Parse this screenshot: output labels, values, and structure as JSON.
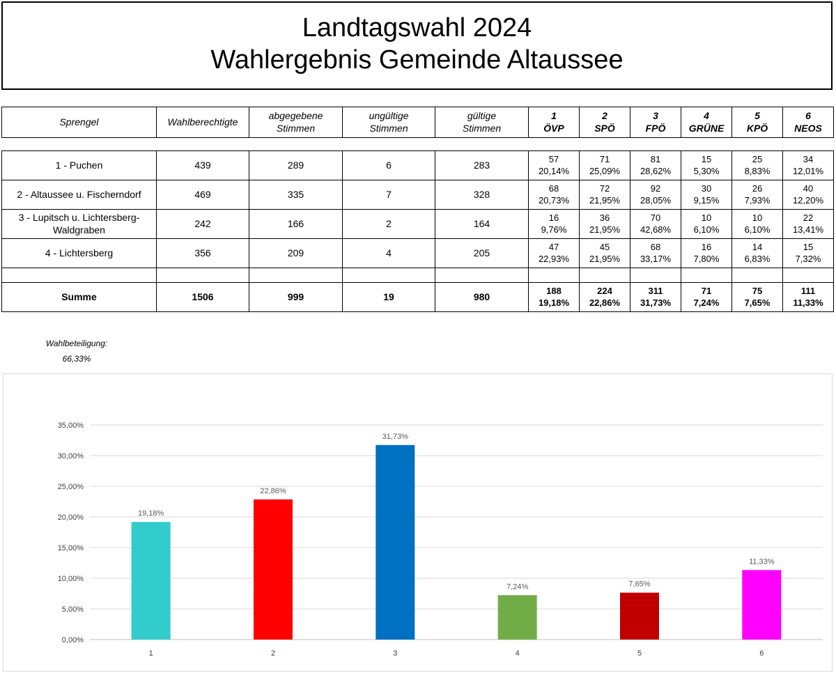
{
  "title": {
    "line1": "Landtagswahl 2024",
    "line2": "Wahlergebnis Gemeinde Altaussee"
  },
  "table": {
    "headers": {
      "sprengel": "Sprengel",
      "wahlberechtigte": "Wahlberechtigte",
      "abgegebene_1": "abgegebene",
      "abgegebene_2": "Stimmen",
      "ungueltige_1": "ungültige",
      "ungueltige_2": "Stimmen",
      "gueltige_1": "gültige",
      "gueltige_2": "Stimmen",
      "parties": [
        {
          "num": "1",
          "name": "ÖVP"
        },
        {
          "num": "2",
          "name": "SPÖ"
        },
        {
          "num": "3",
          "name": "FPÖ"
        },
        {
          "num": "4",
          "name": "GRÜNE"
        },
        {
          "num": "5",
          "name": "KPÖ"
        },
        {
          "num": "6",
          "name": "NEOS"
        }
      ]
    },
    "rows": [
      {
        "sprengel": "1 - Puchen",
        "wahlberechtigte": "439",
        "abgegebene": "289",
        "ungueltige": "6",
        "gueltige": "283",
        "votes": [
          "57",
          "71",
          "81",
          "15",
          "25",
          "34"
        ],
        "pct": [
          "20,14%",
          "25,09%",
          "28,62%",
          "5,30%",
          "8,83%",
          "12,01%"
        ]
      },
      {
        "sprengel": "2 - Altaussee u. Fischerndorf",
        "wahlberechtigte": "469",
        "abgegebene": "335",
        "ungueltige": "7",
        "gueltige": "328",
        "votes": [
          "68",
          "72",
          "92",
          "30",
          "26",
          "40"
        ],
        "pct": [
          "20,73%",
          "21,95%",
          "28,05%",
          "9,15%",
          "7,93%",
          "12,20%"
        ]
      },
      {
        "sprengel": "3 - Lupitsch u. Lichtersberg-Waldgraben",
        "wahlberechtigte": "242",
        "abgegebene": "166",
        "ungueltige": "2",
        "gueltige": "164",
        "votes": [
          "16",
          "36",
          "70",
          "10",
          "10",
          "22"
        ],
        "pct": [
          "9,76%",
          "21,95%",
          "42,68%",
          "6,10%",
          "6,10%",
          "13,41%"
        ]
      },
      {
        "sprengel": "4 - Lichtersberg",
        "wahlberechtigte": "356",
        "abgegebene": "209",
        "ungueltige": "4",
        "gueltige": "205",
        "votes": [
          "47",
          "45",
          "68",
          "16",
          "14",
          "15"
        ],
        "pct": [
          "22,93%",
          "21,95%",
          "33,17%",
          "7,80%",
          "6,83%",
          "7,32%"
        ]
      }
    ],
    "sum": {
      "label": "Summe",
      "wahlberechtigte": "1506",
      "abgegebene": "999",
      "ungueltige": "19",
      "gueltige": "980",
      "votes": [
        "188",
        "224",
        "311",
        "71",
        "75",
        "111"
      ],
      "pct": [
        "19,18%",
        "22,86%",
        "31,73%",
        "7,24%",
        "7,65%",
        "11,33%"
      ]
    }
  },
  "turnout": {
    "label": "Wahlbeteiligung:",
    "value": "66,33%"
  },
  "chart_data": {
    "type": "bar",
    "categories": [
      "1",
      "2",
      "3",
      "4",
      "5",
      "6"
    ],
    "values": [
      19.18,
      22.86,
      31.73,
      7.24,
      7.65,
      11.33
    ],
    "data_labels": [
      "19,18%",
      "22,86%",
      "31,73%",
      "7,24%",
      "7,65%",
      "11,33%"
    ],
    "colors": [
      "#33cccc",
      "#ff0000",
      "#0070c0",
      "#70ad47",
      "#c00000",
      "#ff00ff"
    ],
    "yticks": [
      "0,00%",
      "5,00%",
      "10,00%",
      "15,00%",
      "20,00%",
      "25,00%",
      "30,00%",
      "35,00%"
    ],
    "ylim": [
      0,
      35
    ],
    "grid": true,
    "legend": "none",
    "title": "",
    "xlabel": "",
    "ylabel": ""
  }
}
